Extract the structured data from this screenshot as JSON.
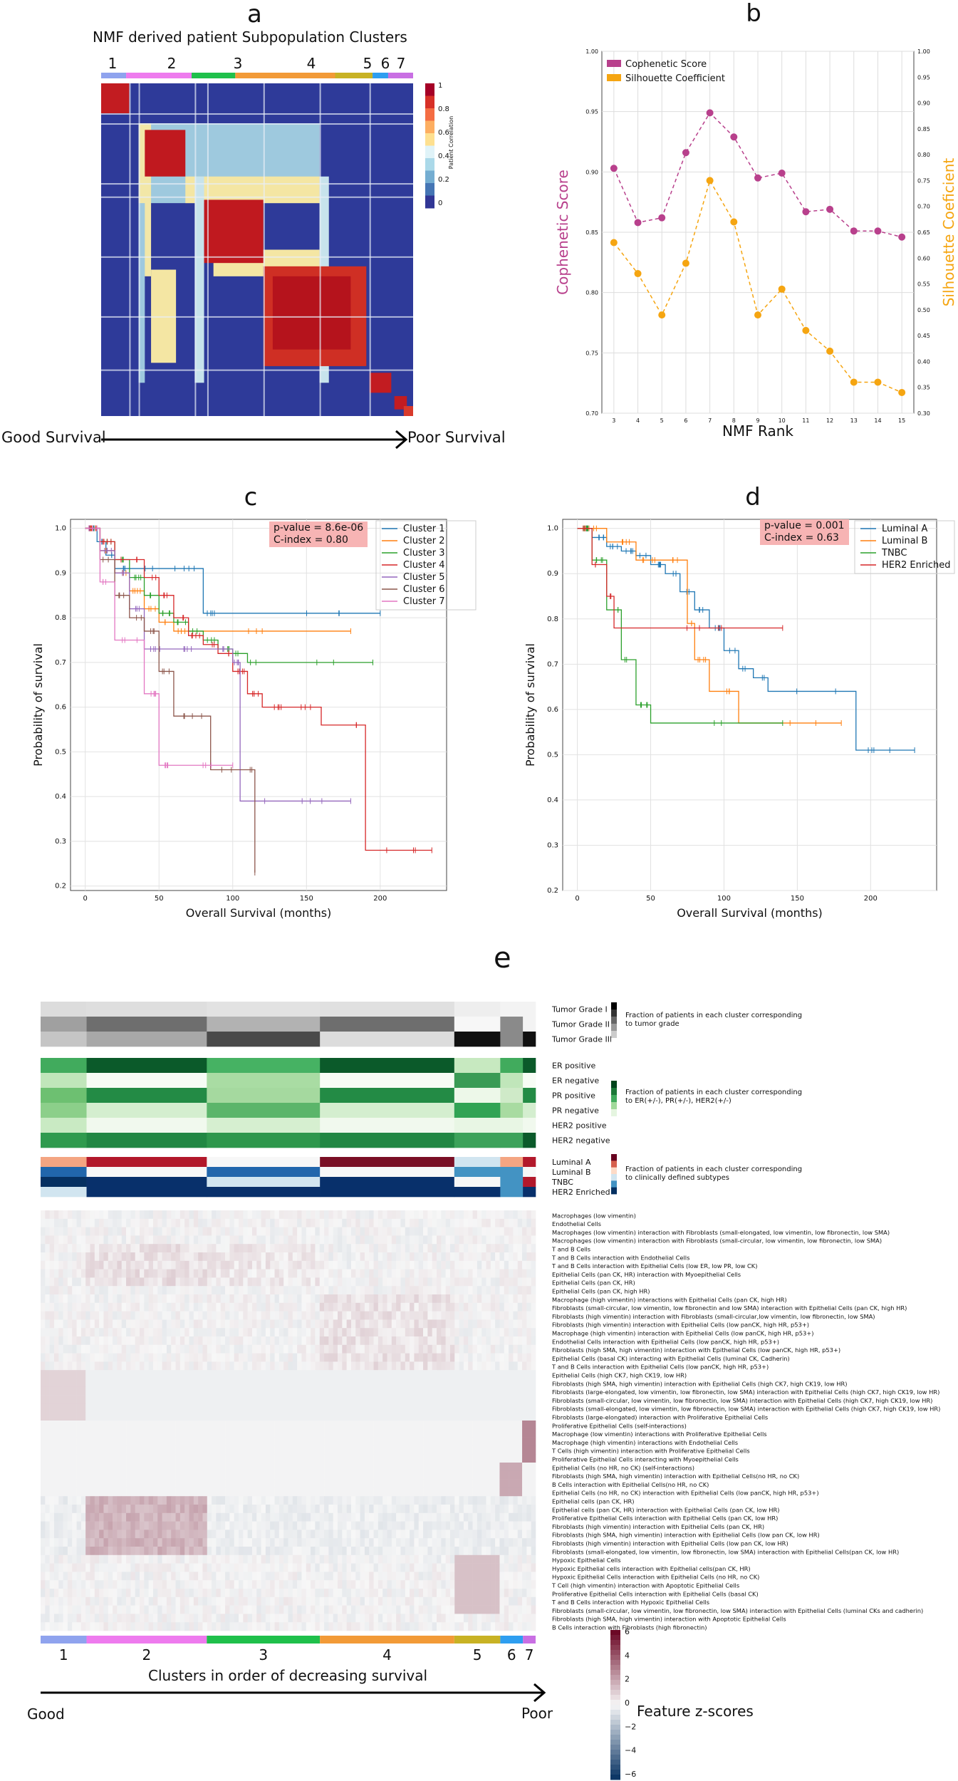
{
  "panel_a": {
    "letter": "a",
    "title": "NMF derived patient Subpopulation Clusters",
    "cluster_labels": [
      "1",
      "2",
      "3",
      "4",
      "5",
      "6",
      "7"
    ],
    "cluster_colors": [
      "#8fa3ee",
      "#ee7bee",
      "#1fc04b",
      "#f29a37",
      "#c8b224",
      "#2e9ef0",
      "#c96fe3"
    ],
    "colorbar_label": "Patient Correlation",
    "colorbar_ticks": [
      "1",
      "0.8",
      "0.6",
      "0.4",
      "0.2",
      "0"
    ],
    "good_label": "Good Survival",
    "poor_label": "Poor Survival"
  },
  "panel_c": {
    "letter": "c",
    "pvalue": "p-value = 8.6e-06",
    "cindex": "C-index = 0.80"
  },
  "panel_d": {
    "letter": "d",
    "pvalue": "p-value = 0.001",
    "cindex": "C-index = 0.63"
  },
  "panel_e": {
    "letter": "e",
    "grade_rows": [
      "Tumor Grade I",
      "Tumor Grade II",
      "Tumor Grade III"
    ],
    "grade_legend": "Fraction of patients in each cluster corresponding to tumor grade",
    "receptor_rows": [
      "ER positive",
      "ER negative",
      "PR positive",
      "PR negative",
      "HER2 positive",
      "HER2 negative"
    ],
    "receptor_legend": "Fraction of patients in each cluster corresponding to ER(+/-), PR(+/-), HER2(+/-)",
    "subtype_rows": [
      "Luminal A",
      "Luminal B",
      "TNBC",
      "HER2 Enriched"
    ],
    "subtype_legend": "Fraction of patients in each cluster corresponding to clinically defined subtypes",
    "features": [
      "Macrophages (low vimentin)",
      "Endothelial Cells",
      "Macrophages (low vimentin) interaction with Fibroblasts (small-elongated, low vimentin, low fibronectin, low SMA)",
      "Macrophages (low vimentin) interaction with Fibroblasts (small-circular, low vimentin, low fibronectin, low SMA)",
      "T and B Cells",
      "T and B Cells interaction with Endothelial Cells",
      "T and B Cells interaction with Epithelial Cells (low ER, low PR, low CK)",
      "Epithelial Cells (pan CK, HR) interaction with Myoepithelial Cells",
      "Epithelial Cells (pan CK, HR)",
      "Epithelial Cells (pan CK, high HR)",
      "Macrophage (high vimentin) interactions with Epithelial Cells (pan CK, high HR)",
      "Fibroblasts (small-circular, low vimentin, low fibronectin and low SMA) interaction with Epithelial Cells (pan CK, high HR)",
      "Fibroblasts (high vimentin) interaction with Fibroblasts (small-circular,low vimentin, low fibronectin, low SMA)",
      "Fibroblasts (high vimentin) interaction with Epithelial Cells (low panCK, high HR, p53+)",
      "Macrophage (high vimentin) interaction with Epithelial Cells (low panCK, high HR, p53+)",
      "Endothelial Cells interaction with Epithelial Cells (low panCK, high HR, p53+)",
      "Fibroblasts (high SMA, high vimentin) interaction with Epithelial Cells (low panCK, high HR, p53+)",
      "Epithelial Cells (basal CK) interacting with Epithelial Cells (luminal CK, Cadherin)",
      "T and B Cells interaction with Epithelial Cells (low panCK, high HR, p53+)",
      "Epithelial Cells (high CK7, high CK19, low HR)",
      "Fibroblasts (high SMA, high vimentin) interaction with Epithelial Cells (high CK7, high CK19, low HR)",
      "Fibroblasts (large-elongated, low vimentin, low fibronectin, low SMA) interaction with Epithelial Cells (high CK7, high CK19, low HR)",
      "Fibroblasts (small-circular, low vimentin, low fibronectin, low SMA) interaction with Epithelial Cells (high CK7, high CK19, low HR)",
      "Fibroblasts (small-elongated, low vimentin, low fibronectin, low SMA) interaction with Epithelial Cells (high CK7, high CK19, low HR)",
      "Fibroblasts (large-elongated) interaction with Proliferative Epithelial Cells",
      "Proliferative Epithelial Cells (self-interactions)",
      "Macrophage (low vimentin) interactions with Proliferative Epithelial Cells",
      "Macrophage (high vimentin) interactions with Endothelial Cells",
      "T Cells (high vimentin) interaction with Proliferative Epithelial Cells",
      "Proliferative Epithelial Cells interacting with Myoepithelial Cells",
      "Epithelial Cells (no HR, no CK) (self-interactions)",
      "Fibroblasts (high SMA, high vimentin) interaction with Epithelial Cells(no HR, no CK)",
      "B Cells interaction with Epithelial Cells(no HR, no CK)",
      "Epithelial Cells (no HR, no CK) interaction with Epithelial Cells (low panCK, high HR, p53+)",
      "Epithelial cells (pan CK, HR)",
      "Epithelial cells (pan CK, HR) interaction with Epithelial Cells (pan CK, low HR)",
      "Proliferative Epithelial Cells interaction with Epithelial Cells (pan CK, low HR)",
      "Fibroblasts (high vimentin) interaction with Epithelial Cells (pan CK, HR)",
      "Fibroblasts (high SMA, high vimentin) interaction with Epithelial Cells (low pan CK, low HR)",
      "Fibroblasts (high vimentin) interaction with Epithelial Cells (low pan CK, low HR)",
      "Fibroblasts (small-elongated, low vimentin, low fibronectin, low SMA) interaction with Epithelial Cells(pan CK, low HR)",
      "Hypoxic Epithelial Cells",
      "Hypoxic Epithelial cells interaction with Epithelial cells(pan CK, HR)",
      "Hypoxic Epithelial Cells interaction with Epithelial Cells (no HR, no CK)",
      "T Cell (high vimentin) interaction with Apoptotic Epithelial Cells",
      "Proliferative Epithelial Cells interaction with Epithelial Cells (basal CK)",
      "T and B Cells interaction with Hypoxic Epithelial Cells",
      "Fibroblasts (small-circular, low vimentin, low fibronectin, low SMA) interaction with Epithelial Cells (luminal CKs and cadherin)",
      "Fibroblasts (high SMA, high vimentin) interaction with Apoptotic Epithelial Cells",
      "B Cells interaction with Fibroblasts (high fibronectin)"
    ],
    "cluster_labels": [
      "1",
      "2",
      "3",
      "4",
      "5",
      "6",
      "7"
    ],
    "cluster_colors": [
      "#8fa3ee",
      "#ee7bee",
      "#1fc04b",
      "#f29a37",
      "#c8b224",
      "#2e9ef0",
      "#c96fe3"
    ],
    "bottom_caption": "Clusters in order of decreasing survival",
    "good_label": "Good",
    "poor_label": "Poor",
    "zscore_label": "Feature z-scores",
    "zscore_ticks": [
      "6",
      "4",
      "2",
      "0",
      "−2",
      "−4",
      "−6"
    ]
  },
  "chart_data": [
    {
      "id": "b",
      "type": "line",
      "title": "b",
      "xlabel": "NMF Rank",
      "ylabel": "Cophenetic Score",
      "ylabel_right": "Silhouette Coeficient",
      "x": [
        3,
        4,
        5,
        6,
        7,
        8,
        9,
        10,
        11,
        12,
        13,
        14,
        15
      ],
      "xlim": [
        2.5,
        15.5
      ],
      "ylim": [
        0.7,
        1.0
      ],
      "ylim_right": [
        0.3,
        1.0
      ],
      "yticks": [
        "0.70",
        "0.75",
        "0.80",
        "0.85",
        "0.90",
        "0.95",
        "1.00"
      ],
      "yticks_right": [
        "0.30",
        "0.35",
        "0.40",
        "0.45",
        "0.50",
        "0.55",
        "0.60",
        "0.65",
        "0.70",
        "0.75",
        "0.80",
        "0.85",
        "0.90",
        "0.95",
        "1.00"
      ],
      "series": [
        {
          "name": "Cophenetic Score",
          "axis": "left",
          "color": "#b8408c",
          "values": [
            0.903,
            0.858,
            0.862,
            0.916,
            0.949,
            0.929,
            0.895,
            0.899,
            0.867,
            0.869,
            0.851,
            0.851,
            0.846
          ]
        },
        {
          "name": "Silhouette Coefficient",
          "axis": "right",
          "color": "#f5a511",
          "values": [
            0.63,
            0.57,
            0.49,
            0.59,
            0.75,
            0.67,
            0.49,
            0.54,
            0.46,
            0.42,
            0.36,
            0.36,
            0.34
          ]
        }
      ],
      "legend": "top-left",
      "grid": true
    },
    {
      "id": "c",
      "type": "line",
      "title": "c",
      "xlabel": "Overall Survival (months)",
      "ylabel": "Probability of survival",
      "xlim": [
        -10,
        245
      ],
      "ylim": [
        0.19,
        1.02
      ],
      "xticks": [
        "0",
        "50",
        "100",
        "150",
        "200"
      ],
      "yticks": [
        "0.2",
        "0.3",
        "0.4",
        "0.5",
        "0.6",
        "0.7",
        "0.8",
        "0.9",
        "1.0"
      ],
      "series": [
        {
          "name": "Cluster 1",
          "color": "#1f77b4",
          "t": [
            0,
            8,
            14,
            20,
            30,
            55,
            80,
            90,
            200
          ],
          "s": [
            1.0,
            0.97,
            0.94,
            0.91,
            0.91,
            0.91,
            0.81,
            0.81,
            0.81
          ]
        },
        {
          "name": "Cluster 2",
          "color": "#ff7f0e",
          "t": [
            0,
            10,
            20,
            30,
            40,
            50,
            60,
            70,
            180
          ],
          "s": [
            1.0,
            0.95,
            0.9,
            0.86,
            0.82,
            0.79,
            0.77,
            0.77,
            0.77
          ]
        },
        {
          "name": "Cluster 3",
          "color": "#2ca02c",
          "t": [
            0,
            10,
            20,
            30,
            40,
            50,
            60,
            70,
            80,
            90,
            100,
            110,
            120,
            195
          ],
          "s": [
            1.0,
            0.97,
            0.93,
            0.89,
            0.85,
            0.81,
            0.79,
            0.77,
            0.75,
            0.73,
            0.72,
            0.7,
            0.7,
            0.7
          ]
        },
        {
          "name": "Cluster 4",
          "color": "#d62728",
          "t": [
            0,
            10,
            20,
            40,
            50,
            60,
            70,
            80,
            90,
            100,
            110,
            120,
            140,
            160,
            190,
            235
          ],
          "s": [
            1.0,
            0.97,
            0.93,
            0.89,
            0.85,
            0.8,
            0.76,
            0.74,
            0.72,
            0.68,
            0.63,
            0.6,
            0.6,
            0.56,
            0.28,
            0.28
          ]
        },
        {
          "name": "Cluster 5",
          "color": "#9467bd",
          "t": [
            0,
            10,
            20,
            30,
            40,
            60,
            80,
            100,
            105,
            180
          ],
          "s": [
            1.0,
            0.95,
            0.9,
            0.82,
            0.73,
            0.73,
            0.73,
            0.7,
            0.39,
            0.39
          ]
        },
        {
          "name": "Cluster 6",
          "color": "#8c564b",
          "t": [
            0,
            10,
            20,
            30,
            40,
            50,
            60,
            85,
            110,
            115
          ],
          "s": [
            1.0,
            0.93,
            0.85,
            0.8,
            0.77,
            0.68,
            0.58,
            0.46,
            0.46,
            0.23
          ]
        },
        {
          "name": "Cluster 7",
          "color": "#e377c2",
          "t": [
            0,
            10,
            20,
            40,
            50,
            60,
            100
          ],
          "s": [
            1.0,
            0.88,
            0.75,
            0.63,
            0.47,
            0.47,
            0.47
          ]
        }
      ],
      "legend": "top-right",
      "grid": true
    },
    {
      "id": "d",
      "type": "line",
      "title": "d",
      "xlabel": "Overall Survival (months)",
      "ylabel": "Probability of survival",
      "xlim": [
        -10,
        245
      ],
      "ylim": [
        0.2,
        1.02
      ],
      "xticks": [
        "0",
        "50",
        "100",
        "150",
        "200"
      ],
      "yticks": [
        "0.2",
        "0.3",
        "0.4",
        "0.5",
        "0.6",
        "0.7",
        "0.8",
        "0.9",
        "1.0"
      ],
      "series": [
        {
          "name": "Luminal A",
          "color": "#1f77b4",
          "t": [
            0,
            10,
            20,
            30,
            40,
            50,
            60,
            70,
            80,
            90,
            100,
            110,
            120,
            130,
            190,
            230
          ],
          "s": [
            1.0,
            0.98,
            0.96,
            0.95,
            0.94,
            0.92,
            0.9,
            0.86,
            0.82,
            0.78,
            0.73,
            0.69,
            0.67,
            0.64,
            0.51,
            0.51
          ]
        },
        {
          "name": "Luminal B",
          "color": "#ff7f0e",
          "t": [
            0,
            20,
            40,
            60,
            75,
            80,
            90,
            110,
            180
          ],
          "s": [
            1.0,
            0.97,
            0.93,
            0.93,
            0.79,
            0.71,
            0.64,
            0.57,
            0.57
          ]
        },
        {
          "name": "TNBC",
          "color": "#2ca02c",
          "t": [
            0,
            10,
            20,
            30,
            40,
            50,
            140
          ],
          "s": [
            1.0,
            0.93,
            0.82,
            0.71,
            0.61,
            0.57,
            0.57
          ]
        },
        {
          "name": "HER2 Enriched",
          "color": "#d62728",
          "t": [
            0,
            10,
            20,
            25,
            140
          ],
          "s": [
            1.0,
            0.92,
            0.85,
            0.78,
            0.78
          ]
        }
      ],
      "legend": "top-right",
      "grid": true
    }
  ]
}
